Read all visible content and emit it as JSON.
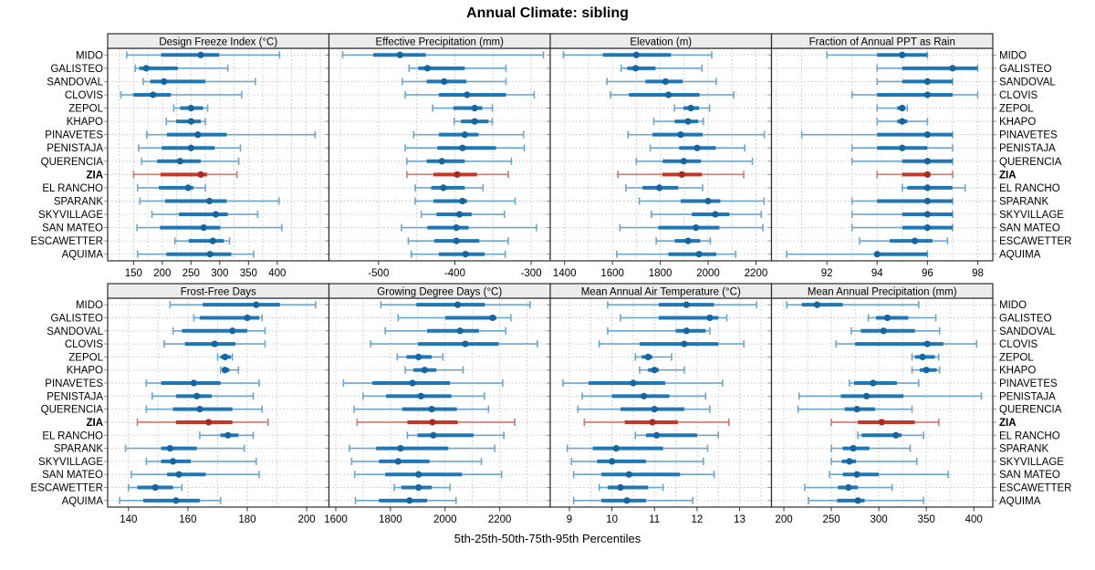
{
  "title": "Annual Climate: sibling",
  "caption": "5th-25th-50th-75th-95th Percentiles",
  "colors": {
    "blue_dot": "#1565a0",
    "blue_thick": "#1f77b4",
    "blue_thin": "#6ba6cf",
    "red_dot": "#a82a22",
    "red_thick": "#c0392b",
    "red_thin": "#d4756b",
    "strip_bg": "#ececec",
    "panel_border": "#2b2b2b",
    "grid": "#c6c6c6",
    "row_tick": "#888888"
  },
  "chart_data": {
    "type": "dotplot",
    "percentiles": [
      "5th",
      "25th",
      "50th",
      "75th",
      "95th"
    ],
    "layout": {
      "rows": 2,
      "cols": 4,
      "grid": "dotted",
      "highlight_color_meaning": "ZIA site emphasized"
    },
    "sites": [
      "MIDO",
      "GALISTEO",
      "SANDOVAL",
      "CLOVIS",
      "ZEPOL",
      "KHAPO",
      "PINAVETES",
      "PENISTAJA",
      "QUERENCIA",
      "ZIA",
      "EL RANCHO",
      "SPARANK",
      "SKYVILLAGE",
      "SAN MATEO",
      "ESCAWETTER",
      "AQUIMA"
    ],
    "highlight_site": "ZIA",
    "panels": [
      {
        "title": "Design Freeze Index (°C)",
        "xlim": [
          105,
          490
        ],
        "ticks": [
          150,
          200,
          250,
          300,
          350,
          400
        ],
        "minor_step": 25,
        "values": [
          [
            138,
            198,
            267,
            299,
            404
          ],
          [
            153,
            160,
            172,
            227,
            314
          ],
          [
            167,
            179,
            203,
            275,
            362
          ],
          [
            128,
            150,
            184,
            215,
            338
          ],
          [
            220,
            231,
            250,
            271,
            279
          ],
          [
            207,
            224,
            250,
            267,
            275
          ],
          [
            173,
            208,
            262,
            312,
            466
          ],
          [
            159,
            199,
            250,
            291,
            336
          ],
          [
            164,
            191,
            231,
            267,
            333
          ],
          [
            150,
            197,
            267,
            278,
            330
          ],
          [
            157,
            194,
            245,
            254,
            275
          ],
          [
            161,
            205,
            282,
            312,
            403
          ],
          [
            182,
            229,
            293,
            314,
            366
          ],
          [
            156,
            196,
            272,
            301,
            408
          ],
          [
            222,
            246,
            288,
            307,
            317
          ],
          [
            157,
            207,
            283,
            320,
            359
          ]
        ]
      },
      {
        "title": "Effective Precipitation (mm)",
        "xlim": [
          -565,
          -275
        ],
        "ticks": [
          -500,
          -400,
          -300
        ],
        "minor_step": 50,
        "values": [
          [
            -547,
            -507,
            -472,
            -438,
            -284
          ],
          [
            -460,
            -448,
            -436,
            -387,
            -333
          ],
          [
            -469,
            -437,
            -414,
            -385,
            -333
          ],
          [
            -465,
            -421,
            -384,
            -333,
            -296
          ],
          [
            -429,
            -402,
            -374,
            -364,
            -351
          ],
          [
            -401,
            -392,
            -374,
            -356,
            -351
          ],
          [
            -454,
            -421,
            -387,
            -369,
            -310
          ],
          [
            -465,
            -423,
            -390,
            -346,
            -309
          ],
          [
            -463,
            -437,
            -417,
            -387,
            -326
          ],
          [
            -463,
            -428,
            -397,
            -371,
            -330
          ],
          [
            -452,
            -431,
            -415,
            -387,
            -363
          ],
          [
            -452,
            -428,
            -390,
            -384,
            -321
          ],
          [
            -444,
            -424,
            -394,
            -378,
            -335
          ],
          [
            -470,
            -436,
            -398,
            -382,
            -293
          ],
          [
            -461,
            -427,
            -398,
            -368,
            -330
          ],
          [
            -457,
            -421,
            -386,
            -361,
            -334
          ]
        ]
      },
      {
        "title": "Elevation (m)",
        "xlim": [
          1340,
          2265
        ],
        "ticks": [
          1400,
          1600,
          1800,
          2000,
          2200
        ],
        "minor_step": 100,
        "values": [
          [
            1395,
            1560,
            1700,
            1845,
            2015
          ],
          [
            1636,
            1662,
            1697,
            1780,
            1974
          ],
          [
            1577,
            1738,
            1822,
            1894,
            2034
          ],
          [
            1592,
            1669,
            1834,
            1964,
            2107
          ],
          [
            1859,
            1897,
            1928,
            1962,
            2006
          ],
          [
            1773,
            1860,
            1916,
            1958,
            1980
          ],
          [
            1665,
            1767,
            1885,
            1977,
            2235
          ],
          [
            1758,
            1879,
            1954,
            2032,
            2153
          ],
          [
            1700,
            1810,
            1898,
            1970,
            2185
          ],
          [
            1623,
            1809,
            1890,
            1974,
            2149
          ],
          [
            1656,
            1726,
            1796,
            1875,
            1977
          ],
          [
            1712,
            1885,
            2000,
            2051,
            2234
          ],
          [
            1763,
            1932,
            2030,
            2089,
            2222
          ],
          [
            1631,
            1792,
            1949,
            2047,
            2229
          ],
          [
            1783,
            1860,
            1916,
            1967,
            2009
          ],
          [
            1618,
            1834,
            1962,
            2034,
            2115
          ]
        ]
      },
      {
        "title": "Fraction of Annual PPT as Rain",
        "xlim": [
          89.8,
          98.6
        ],
        "ticks": [
          92,
          94,
          96,
          98
        ],
        "minor_step": 1,
        "values": [
          [
            92,
            94,
            95,
            96,
            96
          ],
          [
            94,
            95,
            97,
            98,
            98
          ],
          [
            94,
            95,
            96,
            97,
            97
          ],
          [
            93,
            94,
            96,
            97,
            98
          ],
          [
            94,
            94.8,
            95,
            95,
            95.2
          ],
          [
            94,
            94.8,
            95,
            95.2,
            96
          ],
          [
            91,
            94,
            96,
            97,
            97
          ],
          [
            93,
            94,
            95,
            96,
            97
          ],
          [
            93,
            95,
            96,
            97,
            97
          ],
          [
            94,
            95,
            96,
            96,
            97
          ],
          [
            95,
            95.2,
            96,
            97,
            97.5
          ],
          [
            93,
            94,
            96,
            97,
            97
          ],
          [
            93,
            95,
            96,
            97,
            97
          ],
          [
            93,
            95,
            96,
            97,
            97
          ],
          [
            93.3,
            94.5,
            95.5,
            96.2,
            96.8
          ],
          [
            90.4,
            94,
            94,
            96,
            96
          ]
        ]
      },
      {
        "title": "Frost-Free Days",
        "xlim": [
          133,
          207.5
        ],
        "ticks": [
          140,
          160,
          180,
          200
        ],
        "minor_step": 10,
        "values": [
          [
            154,
            165,
            183,
            191,
            203
          ],
          [
            162,
            164,
            180,
            184,
            185
          ],
          [
            155,
            158,
            175,
            180,
            186
          ],
          [
            152,
            159,
            169,
            176,
            186
          ],
          [
            170,
            171,
            172.5,
            174.5,
            175
          ],
          [
            171,
            171.5,
            172.5,
            174,
            177
          ],
          [
            146,
            151,
            162,
            171,
            184
          ],
          [
            148,
            156,
            163,
            168,
            182
          ],
          [
            146,
            155,
            164,
            175,
            185
          ],
          [
            143,
            156,
            167,
            175,
            187
          ],
          [
            164,
            171,
            173.5,
            177,
            182
          ],
          [
            139,
            151,
            154,
            163,
            179
          ],
          [
            146,
            151,
            155,
            161,
            183
          ],
          [
            141,
            153,
            157,
            166,
            184
          ],
          [
            140,
            143,
            149,
            155,
            158
          ],
          [
            137,
            145,
            156,
            164,
            171
          ]
        ]
      },
      {
        "title": "Growing Degree Days (°C)",
        "xlim": [
          1575,
          2385
        ],
        "ticks": [
          1600,
          1800,
          2000,
          2200
        ],
        "minor_step": 100,
        "values": [
          [
            1765,
            1895,
            2046,
            2146,
            2311
          ],
          [
            1828,
            2001,
            2174,
            2188,
            2241
          ],
          [
            1781,
            1934,
            2055,
            2124,
            2222
          ],
          [
            1728,
            1901,
            2074,
            2196,
            2338
          ],
          [
            1825,
            1859,
            1903,
            1951,
            1992
          ],
          [
            1854,
            1884,
            1925,
            1968,
            2066
          ],
          [
            1628,
            1734,
            1881,
            2018,
            2211
          ],
          [
            1700,
            1784,
            1912,
            2023,
            2144
          ],
          [
            1667,
            1843,
            1951,
            2043,
            2159
          ],
          [
            1678,
            1862,
            1954,
            2046,
            2255
          ],
          [
            1862,
            1899,
            1957,
            2104,
            2215
          ],
          [
            1650,
            1748,
            1837,
            2012,
            2182
          ],
          [
            1658,
            1758,
            1828,
            1943,
            2133
          ],
          [
            1669,
            1781,
            1903,
            2062,
            2207
          ],
          [
            1814,
            1840,
            1903,
            1951,
            2018
          ],
          [
            1672,
            1758,
            1870,
            1934,
            2040
          ]
        ]
      },
      {
        "title": "Mean Annual Air Temperature (°C)",
        "xlim": [
          8.55,
          13.75
        ],
        "ticks": [
          9,
          10,
          11,
          12,
          13
        ],
        "minor_step": 0.5,
        "values": [
          [
            9.9,
            11.1,
            11.75,
            12.4,
            13.4
          ],
          [
            10.2,
            11.1,
            12.3,
            12.5,
            12.7
          ],
          [
            9.9,
            11.5,
            11.75,
            12.2,
            12.3
          ],
          [
            9.7,
            10.65,
            11.7,
            12.5,
            13.1
          ],
          [
            10.55,
            10.7,
            10.85,
            10.95,
            11.4
          ],
          [
            10.65,
            10.85,
            11.0,
            11.1,
            11.7
          ],
          [
            8.85,
            9.45,
            10.5,
            11.25,
            12.6
          ],
          [
            9.3,
            10.0,
            10.75,
            11.35,
            12.2
          ],
          [
            9.2,
            10.2,
            11.0,
            11.7,
            12.3
          ],
          [
            9.35,
            10.3,
            10.95,
            11.55,
            12.75
          ],
          [
            10.55,
            10.8,
            11.05,
            12.0,
            12.5
          ],
          [
            8.95,
            9.55,
            10.1,
            11.2,
            12.25
          ],
          [
            9.05,
            9.65,
            10.0,
            10.8,
            12.15
          ],
          [
            9.1,
            9.75,
            10.4,
            11.6,
            12.4
          ],
          [
            9.7,
            9.9,
            10.2,
            10.85,
            11.2
          ],
          [
            9.1,
            9.75,
            10.35,
            10.8,
            11.9
          ]
        ]
      },
      {
        "title": "Mean Annual Precipitation (mm)",
        "xlim": [
          187,
          420
        ],
        "ticks": [
          200,
          250,
          300,
          350,
          400
        ],
        "minor_step": 25,
        "values": [
          [
            203,
            219,
            235,
            262,
            342
          ],
          [
            289,
            297,
            309,
            331,
            360
          ],
          [
            271,
            281,
            305,
            338,
            364
          ],
          [
            255,
            275,
            351,
            368,
            403
          ],
          [
            335,
            338,
            346,
            359,
            363
          ],
          [
            335,
            343,
            350,
            361,
            364
          ],
          [
            269,
            274,
            294,
            319,
            342
          ],
          [
            216,
            260,
            287,
            326,
            408
          ],
          [
            215,
            264,
            277,
            296,
            335
          ],
          [
            250,
            278,
            303,
            338,
            363
          ],
          [
            278,
            282,
            318,
            324,
            347
          ],
          [
            250,
            262,
            273,
            290,
            333
          ],
          [
            250,
            261,
            269,
            276,
            340
          ],
          [
            248,
            262,
            277,
            300,
            373
          ],
          [
            222,
            257,
            268,
            278,
            314
          ],
          [
            226,
            256,
            278,
            285,
            347
          ]
        ]
      }
    ]
  }
}
